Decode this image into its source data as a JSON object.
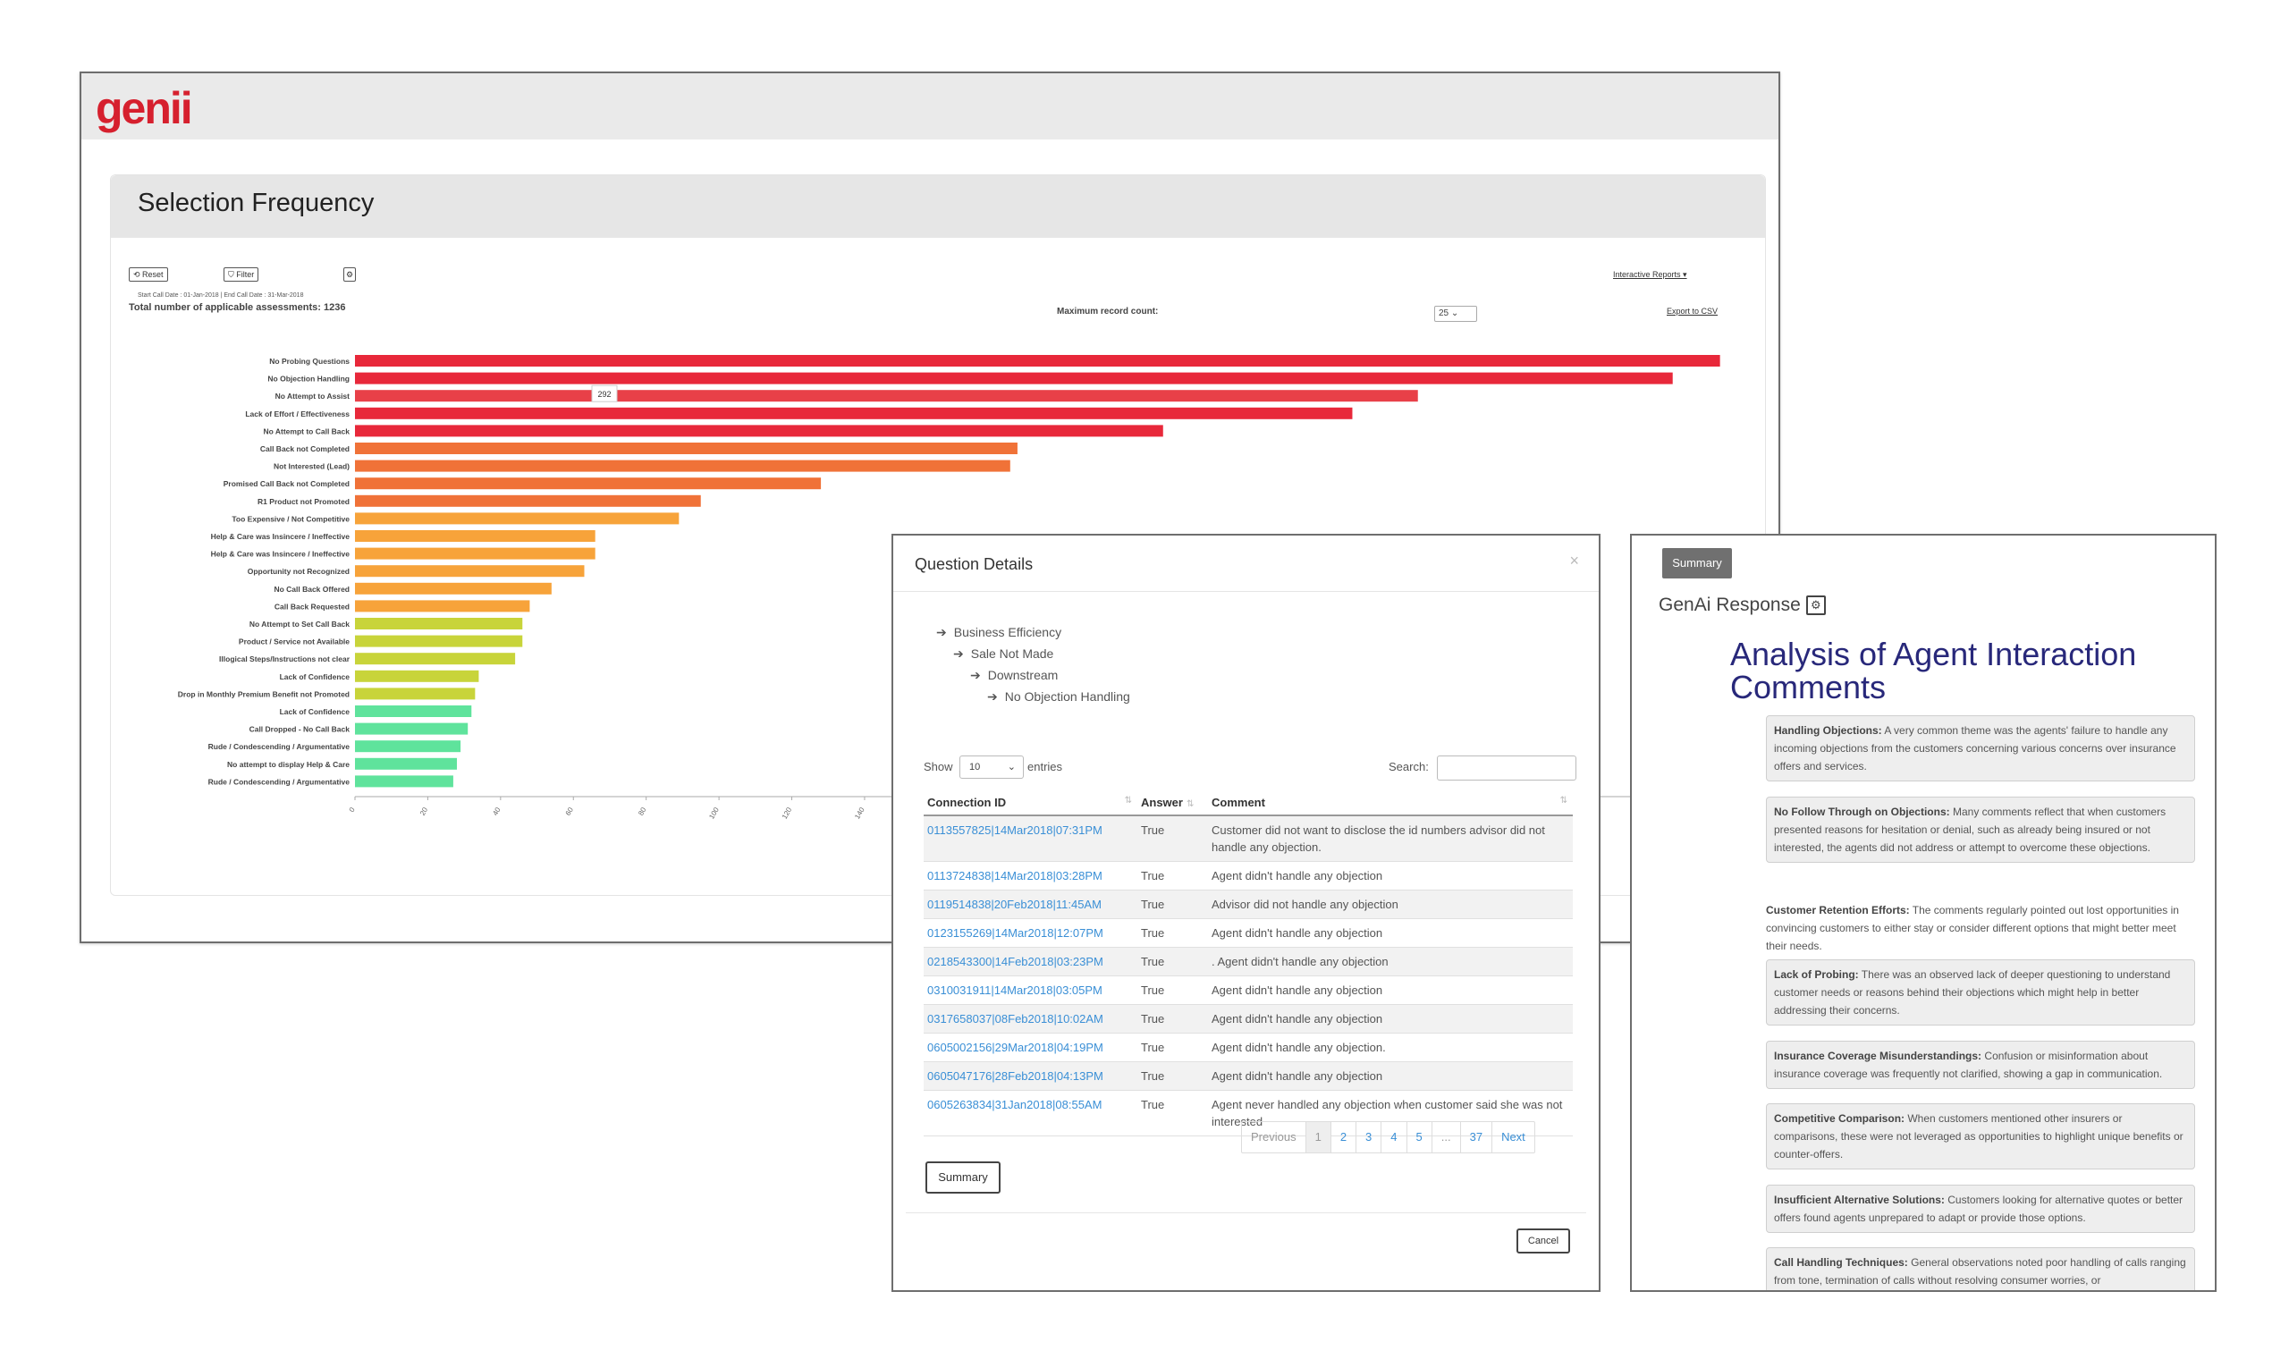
{
  "brand": {
    "logo_text": "genii",
    "logo_color": "#d6202e"
  },
  "report": {
    "title": "Selection Frequency",
    "reset_label": "⟲ Reset",
    "filter_label": "⛉ Filter",
    "settings_icon": "gear-icon",
    "date_range": "Start Call Date : 01-Jan-2018 | End Call Date : 31-Mar-2018",
    "total_assessments": "Total number of applicable assessments: 1236",
    "max_record_label": "Maximum record count:",
    "max_record_value": "25",
    "interactive_reports": "Interactive Reports ▾",
    "export_csv": "Export to CSV"
  },
  "chart_data": {
    "type": "bar",
    "orientation": "horizontal",
    "title": "Selection Frequency",
    "categories": [
      "No Probing Questions",
      "No Objection Handling",
      "No Attempt to Assist",
      "Lack of Effort / Effectiveness",
      "No Attempt to Call Back",
      "Call Back not Completed",
      "Not Interested (Lead)",
      "Promised Call Back not Completed",
      "R1 Product not Promoted",
      "Too Expensive / Not Competitive",
      "Help & Care was Insincere / Ineffective",
      "Help & Care was Insincere / Ineffective",
      "Opportunity not Recognized",
      "No Call Back Offered",
      "Call Back Requested",
      "No Attempt to Set Call Back",
      "Product / Service not Available",
      "Illogical Steps/Instructions not clear",
      "Lack of Confidence",
      "Drop in Monthly Premium Benefit not Promoted",
      "Lack of Confidence",
      "Call Dropped - No Call Back",
      "Rude / Condescending / Argumentative",
      "No attempt to display Help & Care",
      "Rude / Condescending / Argumentative"
    ],
    "values": [
      375,
      362,
      292,
      274,
      222,
      182,
      180,
      128,
      95,
      89,
      66,
      66,
      63,
      54,
      48,
      46,
      46,
      44,
      34,
      33,
      32,
      31,
      29,
      28,
      27
    ],
    "colors": [
      "#e8283a",
      "#e8283a",
      "#e84048",
      "#e8283a",
      "#e8283a",
      "#f07238",
      "#f07238",
      "#f07238",
      "#f07238",
      "#f7a33a",
      "#f7a33a",
      "#f7a33a",
      "#f7a33a",
      "#f7a33a",
      "#f7a33a",
      "#c8d43a",
      "#c8d43a",
      "#c8d43a",
      "#c8d43a",
      "#c8d43a",
      "#5fe39c",
      "#5fe39c",
      "#5fe39c",
      "#5fe39c",
      "#5fe39c"
    ],
    "xticks": [
      0,
      20,
      40,
      60,
      80,
      100,
      120,
      140
    ],
    "xlim": [
      0,
      380
    ],
    "tooltip": {
      "category": "No Attempt to Assist",
      "value": "292"
    }
  },
  "question_details": {
    "title": "Question Details",
    "close": "×",
    "tree": [
      "Business Efficiency",
      "Sale Not Made",
      "Downstream",
      "No Objection Handling"
    ],
    "show_label": "Show",
    "entries_value": "10",
    "entries_label": "entries",
    "search_label": "Search:",
    "columns": [
      "Connection ID",
      "Answer",
      "Comment"
    ],
    "rows": [
      {
        "id": "0113557825|14Mar2018|07:31PM",
        "answer": "True",
        "comment": "Customer did not want to disclose the id numbers advisor did not handle any objection."
      },
      {
        "id": "0113724838|14Mar2018|03:28PM",
        "answer": "True",
        "comment": "Agent didn't handle any objection"
      },
      {
        "id": "0119514838|20Feb2018|11:45AM",
        "answer": "True",
        "comment": "Advisor did not handle any objection"
      },
      {
        "id": "0123155269|14Mar2018|12:07PM",
        "answer": "True",
        "comment": "Agent didn't handle any objection"
      },
      {
        "id": "0218543300|14Feb2018|03:23PM",
        "answer": "True",
        "comment": ". Agent didn't handle any objection"
      },
      {
        "id": "0310031911|14Mar2018|03:05PM",
        "answer": "True",
        "comment": "Agent didn't handle any objection"
      },
      {
        "id": "0317658037|08Feb2018|10:02AM",
        "answer": "True",
        "comment": "Agent didn't handle any objection"
      },
      {
        "id": "0605002156|29Mar2018|04:19PM",
        "answer": "True",
        "comment": "Agent didn't handle any objection."
      },
      {
        "id": "0605047176|28Feb2018|04:13PM",
        "answer": "True",
        "comment": "Agent didn't handle any objection"
      },
      {
        "id": "0605263834|31Jan2018|08:55AM",
        "answer": "True",
        "comment": "Agent never handled any objection when customer said she was not interested"
      }
    ],
    "pagination": [
      "Previous",
      "1",
      "2",
      "3",
      "4",
      "5",
      "...",
      "37",
      "Next"
    ],
    "summary_button": "Summary",
    "cancel_button": "Cancel"
  },
  "genai": {
    "summary_badge": "Summary",
    "label": "GenAi Response",
    "heading": "Analysis of Agent Interaction Comments",
    "items": [
      {
        "title": "Handling Objections:",
        "text": " A very common theme was the agents' failure to handle any incoming objections from the customers concerning various concerns over insurance offers and services."
      },
      {
        "title": "No Follow Through on Objections:",
        "text": " Many comments reflect that when customers presented reasons for hesitation or denial, such as already being insured or not interested, the agents did not address or attempt to overcome these objections."
      },
      {
        "title": "Customer Retention Efforts:",
        "text": " The comments regularly pointed out lost opportunities in convincing customers to either stay or consider different options that might better meet their needs."
      },
      {
        "title": "Lack of Probing:",
        "text": " There was an observed lack of deeper questioning to understand customer needs or reasons behind their objections which might help in better addressing their concerns."
      },
      {
        "title": "Insurance Coverage Misunderstandings:",
        "text": " Confusion or misinformation about insurance coverage was frequently not clarified, showing a gap in communication."
      },
      {
        "title": "Competitive Comparison:",
        "text": " When customers mentioned other insurers or comparisons, these were not leveraged as opportunities to highlight unique benefits or counter-offers."
      },
      {
        "title": "Insufficient Alternative Solutions:",
        "text": " Customers looking for alternative quotes or better offers found agents unprepared to adapt or provide those options."
      },
      {
        "title": "Call Handling Techniques:",
        "text": " General observations noted poor handling of calls ranging from tone, termination of calls without resolving consumer worries, or"
      }
    ]
  }
}
